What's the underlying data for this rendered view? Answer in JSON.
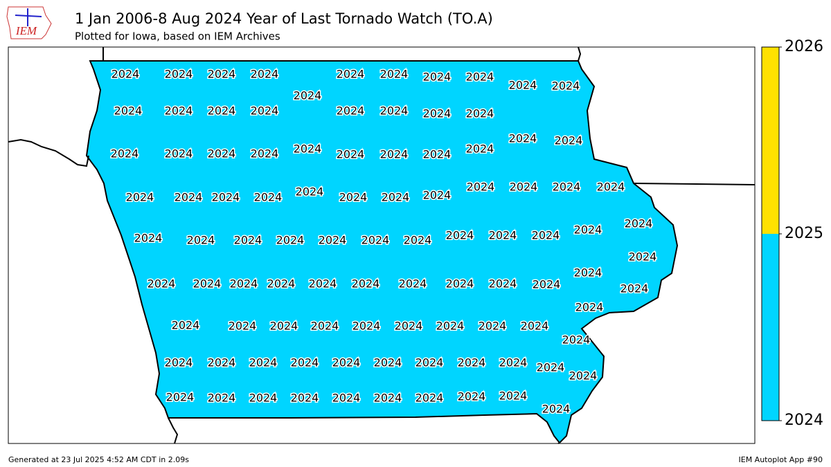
{
  "logo_text": "IEM",
  "title": "1 Jan 2006-8 Aug 2024 Year of Last Tornado Watch (TO.A)",
  "subtitle": "Plotted for Iowa, based on IEM Archives",
  "county_values": [
    2024,
    2024,
    2024,
    2024,
    2024,
    2024,
    2024,
    2024,
    2024,
    2024,
    2024,
    2024,
    2024,
    2024,
    2024,
    2024,
    2024,
    2024,
    2024,
    2024,
    2024,
    2024,
    2024,
    2024,
    2024,
    2024,
    2024,
    2024,
    2024,
    2024,
    2024,
    2024,
    2024,
    2024,
    2024,
    2024,
    2024,
    2024,
    2024,
    2024,
    2024,
    2024,
    2024,
    2024,
    2024,
    2024,
    2024,
    2024,
    2024,
    2024,
    2024,
    2024,
    2024,
    2024,
    2024,
    2024,
    2024,
    2024,
    2024,
    2024,
    2024,
    2024,
    2024,
    2024,
    2024,
    2024,
    2024,
    2024,
    2024,
    2024,
    2024,
    2024,
    2024,
    2024,
    2024,
    2024,
    2024,
    2024,
    2024,
    2024,
    2024,
    2024,
    2024,
    2024,
    2024,
    2024,
    2024,
    2024,
    2024,
    2024,
    2024,
    2024,
    2024,
    2024,
    2024,
    2024,
    2024,
    2024,
    2024
  ],
  "colorbar": {
    "ticks": [
      2024,
      2025,
      2026
    ],
    "colors": [
      "#00d5ff",
      "#ffe100"
    ]
  },
  "footer_left": "Generated at 23 Jul 2025 4:52 AM CDT in 2.09s",
  "footer_right": "IEM Autoplot App #90"
}
